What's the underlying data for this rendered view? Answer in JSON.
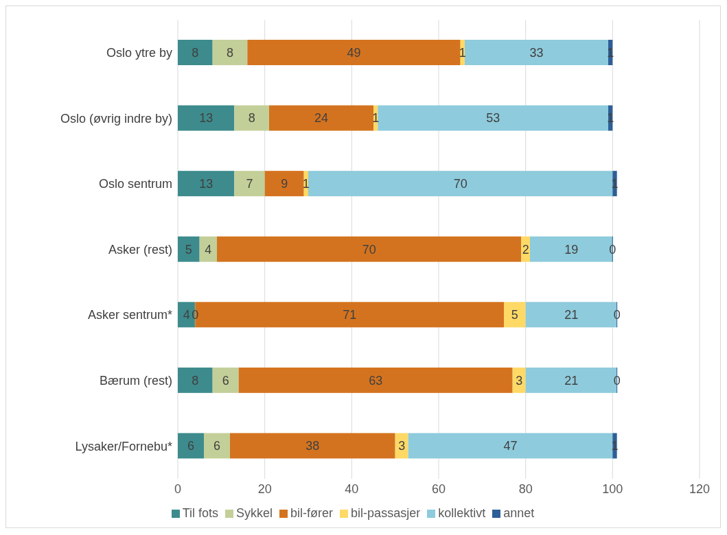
{
  "chart_data": {
    "type": "bar",
    "orientation": "horizontal",
    "stacked": true,
    "categories": [
      "Oslo ytre by",
      "Oslo (øvrig indre by)",
      "Oslo sentrum",
      "Asker (rest)",
      "Asker sentrum*",
      "Bærum (rest)",
      "Lysaker/Fornebu*"
    ],
    "series": [
      {
        "name": "Til fots",
        "color": "#3d8b8d",
        "values": [
          8,
          13,
          13,
          5,
          4,
          8,
          6
        ]
      },
      {
        "name": "Sykkel",
        "color": "#c3cf98",
        "values": [
          8,
          8,
          7,
          4,
          0,
          6,
          6
        ]
      },
      {
        "name": "bil-fører",
        "color": "#d4731f",
        "values": [
          49,
          24,
          9,
          70,
          71,
          63,
          38
        ]
      },
      {
        "name": "bil-passasjer",
        "color": "#ffd966",
        "values": [
          1,
          1,
          1,
          2,
          5,
          3,
          3
        ]
      },
      {
        "name": "kollektivt",
        "color": "#8ecbdc",
        "values": [
          33,
          53,
          70,
          19,
          21,
          21,
          47
        ]
      },
      {
        "name": "annet",
        "color": "#2e5f96",
        "values": [
          1,
          1,
          1,
          0,
          0,
          0,
          1
        ]
      }
    ],
    "xlim": [
      0,
      120
    ],
    "xticks": [
      0,
      20,
      40,
      60,
      80,
      100,
      120
    ],
    "grid": "x",
    "legend": "bottom",
    "data_labels": true
  }
}
